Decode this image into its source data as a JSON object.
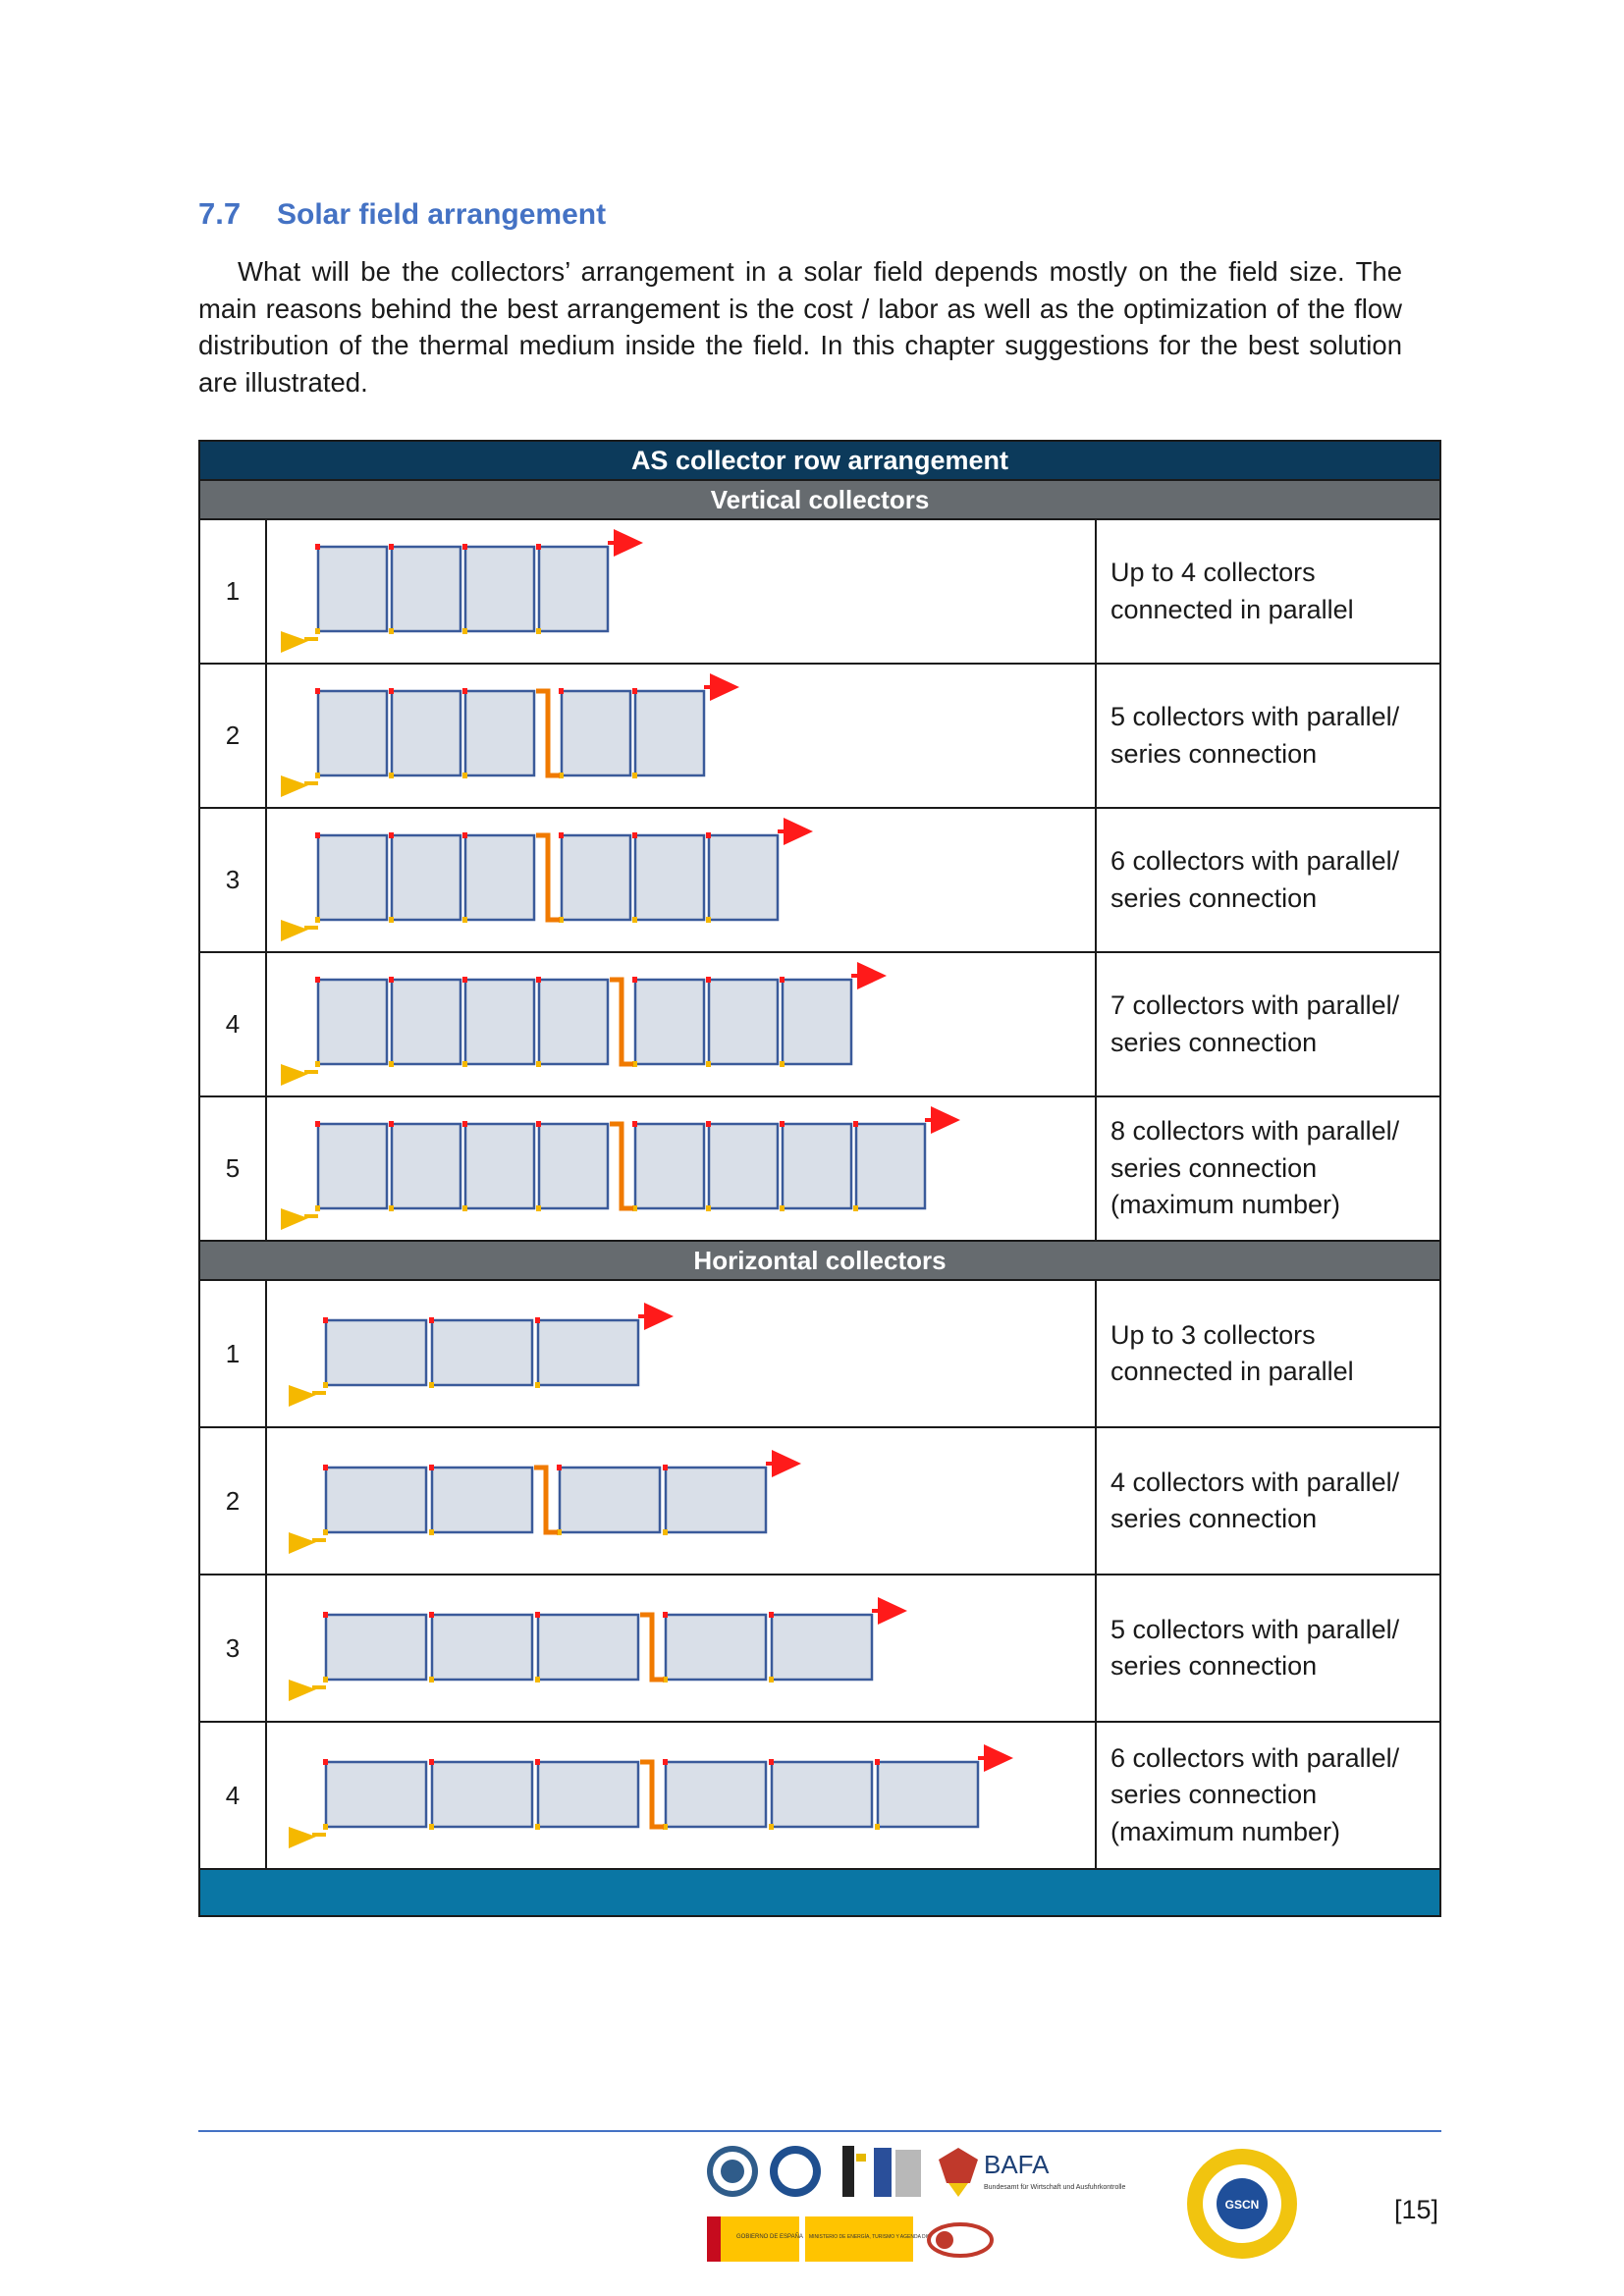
{
  "section": {
    "number": "7.7",
    "title": "Solar field arrangement"
  },
  "intro": "What will be the collectors’ arrangement in a solar field depends mostly on the field size. The main reasons behind the best arrangement is the cost / labor as well as the optimization of the flow distribution of the thermal medium inside the field. In this chapter suggestions for the best solution are illustrated.",
  "table": {
    "title": "AS collector row arrangement",
    "vertical_heading": "Vertical collectors",
    "horizontal_heading": "Horizontal collectors",
    "vertical_rows": [
      {
        "num": "1",
        "desc": "Up to 4 collectors\nconnected in parallel",
        "collectors": 4,
        "split": 4
      },
      {
        "num": "2",
        "desc": "5 collectors with parallel/\nseries connection",
        "collectors": 5,
        "split": 3
      },
      {
        "num": "3",
        "desc": "6 collectors with parallel/\nseries connection",
        "collectors": 6,
        "split": 3
      },
      {
        "num": "4",
        "desc": "7 collectors with parallel/\nseries connection",
        "collectors": 7,
        "split": 4
      },
      {
        "num": "5",
        "desc": "8 collectors with parallel/\nseries connection\n(maximum number)",
        "collectors": 8,
        "split": 4
      }
    ],
    "horizontal_rows": [
      {
        "num": "1",
        "desc": "Up to 3 collectors\nconnected in parallel",
        "collectors": 3,
        "split": 3
      },
      {
        "num": "2",
        "desc": "4 collectors with parallel/\nseries connection",
        "collectors": 4,
        "split": 2
      },
      {
        "num": "3",
        "desc": "5 collectors with parallel/\nseries connection",
        "collectors": 5,
        "split": 3
      },
      {
        "num": "4",
        "desc": "6 collectors with parallel/\nseries connection\n(maximum number)",
        "collectors": 6,
        "split": 3
      }
    ]
  },
  "footer": {
    "page": "[15]",
    "logo_text": [
      "BAFA",
      "Bundesamt für Wirtschaft und Ausfuhrkontrolle",
      "GOBIERNO DE ESPAÑA",
      "MINISTERIO DE ENERGÍA, TURISMO Y AGENDA DIGITAL",
      "GSCN"
    ]
  },
  "colors": {
    "heading": "#4472c4",
    "table_title_bg": "#0c3a5b",
    "subheader_bg": "#666b6f",
    "table_footer_bg": "#0a76a4",
    "panel_fill": "#d9dfe8",
    "panel_border": "#3a5a9a",
    "inlet": "#f5b800",
    "outlet": "#ff1a1a"
  }
}
